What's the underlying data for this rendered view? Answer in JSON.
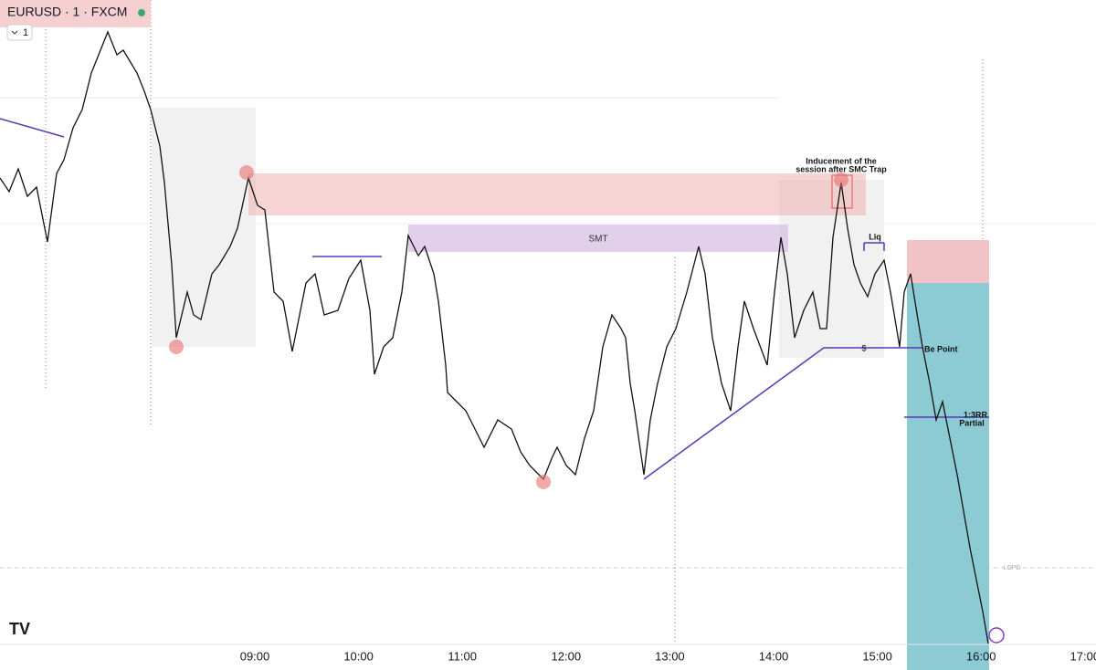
{
  "header": {
    "symbol": "EURUSD · 1 · FXCM",
    "interval": "1"
  },
  "annotations": {
    "inducement": [
      "Inducement of the",
      "session after SMC Trap"
    ],
    "smt": "SMT",
    "liq": "Liq",
    "dollar": "$",
    "be_point": "Be Point",
    "rr": "1:3RR",
    "partial": "Partial",
    "lopd": "LOPD"
  },
  "time_axis": [
    "09:00",
    "10:00",
    "11:00",
    "12:00",
    "13:00",
    "14:00",
    "15:00",
    "16:00",
    "17:00"
  ]
}
